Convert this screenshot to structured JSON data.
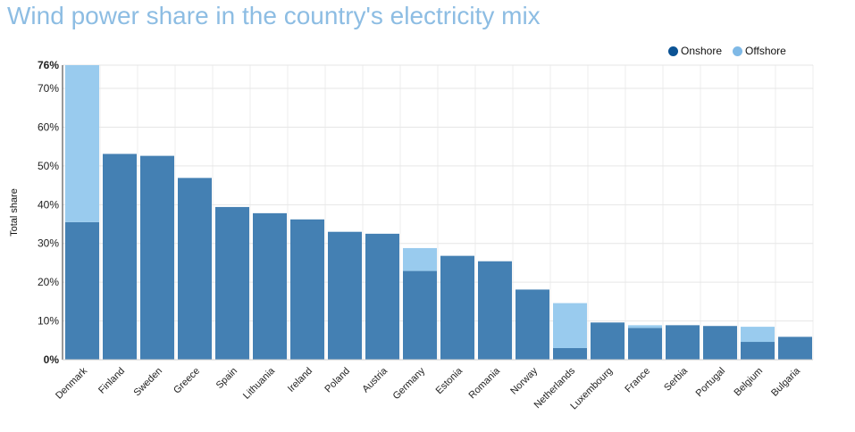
{
  "title": "Wind power share in the country's electricity mix",
  "colors": {
    "onshore": "#4480b3",
    "offshore": "#99cbee",
    "legend_onshore": "#0b5394",
    "legend_offshore": "#7fb9e6"
  },
  "chart_data": {
    "type": "bar",
    "stacked": true,
    "title": "Wind power share in the country's electricity mix",
    "xlabel": "",
    "ylabel": "Total share",
    "ylim": [
      0,
      76
    ],
    "yticks": [
      "0%",
      "10%",
      "20%",
      "30%",
      "40%",
      "50%",
      "60%",
      "70%",
      "76%"
    ],
    "ytick_values": [
      0,
      10,
      20,
      30,
      40,
      50,
      60,
      70,
      76
    ],
    "grid": true,
    "legend_position": "top-right",
    "categories": [
      "Denmark",
      "Finland",
      "Sweden",
      "Greece",
      "Spain",
      "Lithuania",
      "Ireland",
      "Poland",
      "Austria",
      "Germany",
      "Estonia",
      "Romania",
      "Norway",
      "Netherlands",
      "Luxembourg",
      "France",
      "Serbia",
      "Portugal",
      "Belgium",
      "Bulgaria"
    ],
    "series": [
      {
        "name": "Onshore",
        "values": [
          35.5,
          53.1,
          52.6,
          46.9,
          39.4,
          37.8,
          36.2,
          33.0,
          32.5,
          22.9,
          26.8,
          25.4,
          18.1,
          3.0,
          9.6,
          8.2,
          8.9,
          8.7,
          4.6,
          5.9
        ]
      },
      {
        "name": "Offshore",
        "values": [
          40.5,
          0,
          0,
          0,
          0,
          0,
          0,
          0,
          0,
          5.9,
          0,
          0,
          0,
          11.6,
          0,
          0.7,
          0,
          0,
          3.9,
          0
        ]
      }
    ]
  }
}
